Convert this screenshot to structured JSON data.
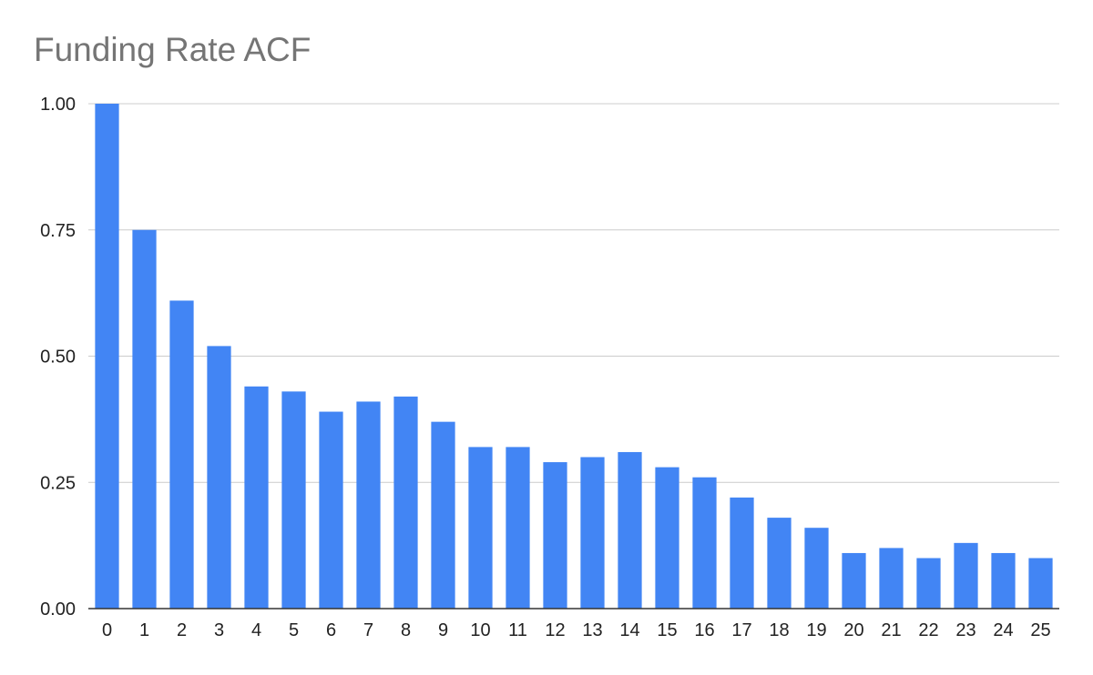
{
  "chart_data": {
    "type": "bar",
    "title": "Funding Rate ACF",
    "xlabel": "",
    "ylabel": "",
    "categories": [
      "0",
      "1",
      "2",
      "3",
      "4",
      "5",
      "6",
      "7",
      "8",
      "9",
      "10",
      "11",
      "12",
      "13",
      "14",
      "15",
      "16",
      "17",
      "18",
      "19",
      "20",
      "21",
      "22",
      "23",
      "24",
      "25"
    ],
    "series": [
      {
        "name": "",
        "values": [
          1.0,
          0.75,
          0.61,
          0.52,
          0.44,
          0.43,
          0.39,
          0.41,
          0.42,
          0.37,
          0.32,
          0.32,
          0.29,
          0.3,
          0.31,
          0.28,
          0.26,
          0.22,
          0.18,
          0.16,
          0.11,
          0.12,
          0.1,
          0.13,
          0.11,
          0.1
        ]
      }
    ],
    "yticks": [
      "0.00",
      "0.25",
      "0.50",
      "0.75",
      "1.00"
    ],
    "ylim": [
      0,
      1
    ],
    "grid": true,
    "legend": "none",
    "colors": {
      "bar": "#4285f4",
      "grid": "#cccccc",
      "axis": "#333333",
      "title": "#757575"
    }
  }
}
